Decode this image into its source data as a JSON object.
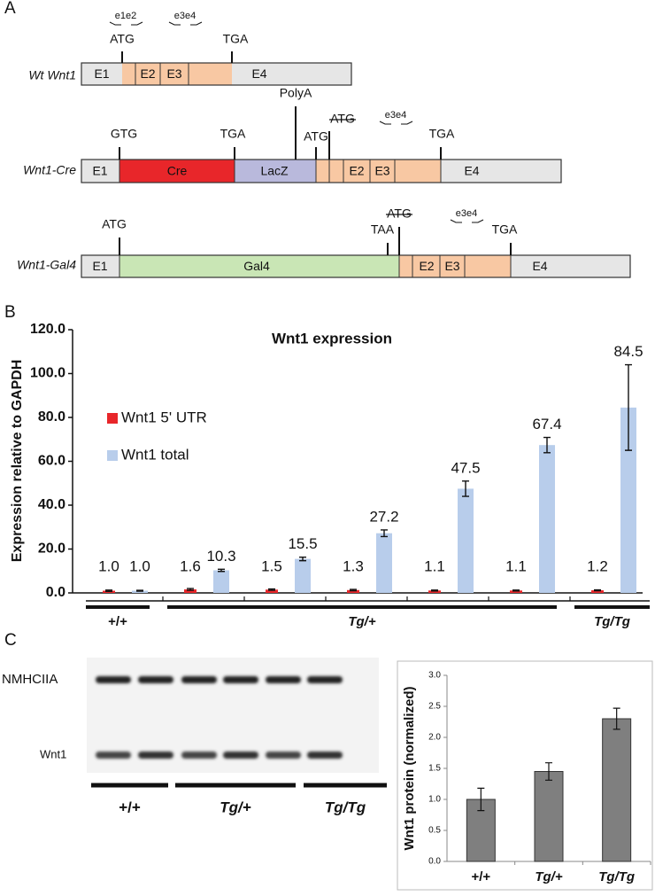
{
  "panel_labels": [
    "A",
    "B",
    "C"
  ],
  "diagram": {
    "constructs": [
      {
        "name": "Wt Wnt1",
        "segments": [
          "E1",
          "E2",
          "E3",
          "E4"
        ],
        "markers": [
          "ATG",
          "TGA"
        ],
        "primers": [
          "e1e2",
          "e3e4"
        ]
      },
      {
        "name": "Wnt1-Cre",
        "segments": [
          "E1",
          "Cre",
          "LacZ",
          "E2",
          "E3",
          "E4"
        ],
        "markers": [
          "GTG",
          "TGA",
          "PolyA",
          "ATG",
          "ATG",
          "TGA"
        ],
        "primers": [
          "e3e4"
        ]
      },
      {
        "name": "Wnt1-Gal4",
        "segments": [
          "E1",
          "Gal4",
          "E2",
          "E3",
          "E4"
        ],
        "markers": [
          "ATG",
          "TAA",
          "ATG",
          "TGA"
        ],
        "primers": [
          "e3e4"
        ]
      }
    ]
  },
  "chart_data": [
    {
      "type": "bar",
      "title": "Wnt1 expression",
      "y_label": "Expression relative to GAPDH",
      "categories": [
        null,
        null,
        null,
        null,
        null,
        null,
        null
      ],
      "category_groups": [
        "+/+",
        "Tg/+",
        "Tg/+",
        "Tg/+",
        "Tg/+",
        "Tg/+",
        "Tg/Tg"
      ],
      "series": [
        {
          "name": "Wnt1 5' UTR",
          "color": "#e8262a",
          "values": [
            1.0,
            1.6,
            1.5,
            1.3,
            1.1,
            1.1,
            1.2
          ],
          "value_labels": [
            "1.0",
            "1.6",
            "1.5",
            "1.3",
            "1.1",
            "1.1",
            "1.2"
          ],
          "errors": [
            0.3,
            0.4,
            0.3,
            0.3,
            0.2,
            0.2,
            0.2
          ]
        },
        {
          "name": "Wnt1 total",
          "color": "#b8cdeb",
          "values": [
            1.0,
            10.3,
            15.5,
            27.2,
            47.5,
            67.4,
            84.5
          ],
          "value_labels": [
            "1.0",
            "10.3",
            "15.5",
            "27.2",
            "47.5",
            "67.4",
            "84.5"
          ],
          "errors": [
            0.2,
            0.5,
            0.8,
            1.5,
            3.5,
            3.5,
            19.5
          ]
        }
      ],
      "ylim": [
        0,
        120
      ],
      "yticks": [
        {
          "value": 0,
          "label": "0.0"
        },
        {
          "value": 20,
          "label": "20.0"
        },
        {
          "value": 40,
          "label": "40.0"
        },
        {
          "value": 60,
          "label": "60.0"
        },
        {
          "value": 80,
          "label": "80.0"
        },
        {
          "value": 100,
          "label": "100.0"
        },
        {
          "value": 120,
          "label": "120.0"
        }
      ],
      "legend": "upper left"
    },
    {
      "type": "bar",
      "y_label": "Wnt1 protein (normalized)",
      "categories": [
        "+/+",
        "Tg/+",
        "Tg/Tg"
      ],
      "values": [
        1.0,
        1.45,
        2.3
      ],
      "errors": [
        0.18,
        0.14,
        0.17
      ],
      "color": "#7f7f7f",
      "ylim": [
        0,
        3
      ],
      "yticks": [
        {
          "value": 0,
          "label": "0.0"
        },
        {
          "value": 0.5,
          "label": "0.5"
        },
        {
          "value": 1,
          "label": "1.0"
        },
        {
          "value": 1.5,
          "label": "1.5"
        },
        {
          "value": 2,
          "label": "2.0"
        },
        {
          "value": 2.5,
          "label": "2.5"
        },
        {
          "value": 3,
          "label": "3.0"
        }
      ]
    }
  ],
  "blot": {
    "bands": [
      "NMHCIIA",
      "Wnt1"
    ],
    "groups": [
      "+/+",
      "Tg/+",
      "Tg/Tg"
    ]
  }
}
